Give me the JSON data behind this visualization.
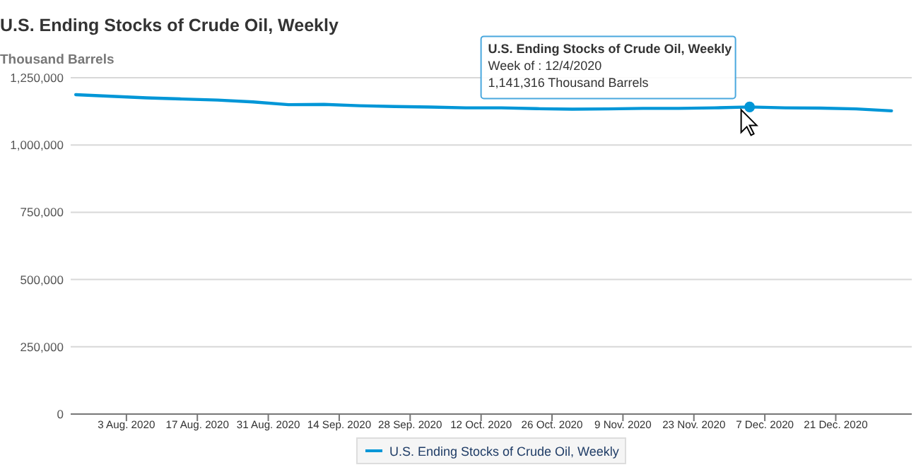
{
  "chart_data": {
    "type": "line",
    "title": "U.S. Ending Stocks of Crude Oil, Weekly",
    "ylabel": "Thousand Barrels",
    "x": [
      "2020-07-24",
      "2020-07-31",
      "2020-08-07",
      "2020-08-14",
      "2020-08-21",
      "2020-08-28",
      "2020-09-04",
      "2020-09-11",
      "2020-09-18",
      "2020-09-25",
      "2020-10-02",
      "2020-10-09",
      "2020-10-16",
      "2020-10-23",
      "2020-10-30",
      "2020-11-06",
      "2020-11-13",
      "2020-11-20",
      "2020-11-27",
      "2020-12-04",
      "2020-12-11",
      "2020-12-18",
      "2020-12-25",
      "2021-01-01"
    ],
    "series": [
      {
        "name": "U.S. Ending Stocks of Crude Oil, Weekly",
        "color": "#0096d7",
        "values": [
          1187000,
          1181000,
          1175000,
          1171000,
          1167000,
          1160000,
          1150000,
          1151000,
          1146000,
          1143000,
          1141000,
          1138000,
          1138000,
          1135000,
          1133000,
          1134000,
          1136000,
          1136000,
          1138000,
          1141316,
          1138000,
          1137000,
          1134000,
          1127000
        ]
      }
    ],
    "xlim": [
      "2020-07-23",
      "2021-01-05"
    ],
    "xticks": [
      {
        "value": "2020-08-03",
        "label": "3 Aug. 2020"
      },
      {
        "value": "2020-08-17",
        "label": "17 Aug. 2020"
      },
      {
        "value": "2020-08-31",
        "label": "31 Aug. 2020"
      },
      {
        "value": "2020-09-14",
        "label": "14 Sep. 2020"
      },
      {
        "value": "2020-09-28",
        "label": "28 Sep. 2020"
      },
      {
        "value": "2020-10-12",
        "label": "12 Oct. 2020"
      },
      {
        "value": "2020-10-26",
        "label": "26 Oct. 2020"
      },
      {
        "value": "2020-11-09",
        "label": "9 Nov. 2020"
      },
      {
        "value": "2020-11-23",
        "label": "23 Nov. 2020"
      },
      {
        "value": "2020-12-07",
        "label": "7 Dec. 2020"
      },
      {
        "value": "2020-12-21",
        "label": "21 Dec. 2020"
      }
    ],
    "ylim": [
      0,
      1250000
    ],
    "yticks": [
      {
        "value": 0,
        "label": "0"
      },
      {
        "value": 250000,
        "label": "250,000"
      },
      {
        "value": 500000,
        "label": "500,000"
      },
      {
        "value": 750000,
        "label": "750,000"
      },
      {
        "value": 1000000,
        "label": "1,000,000"
      },
      {
        "value": 1250000,
        "label": "1,250,000"
      }
    ],
    "grid": "y",
    "legend": "bottom",
    "marker": "none",
    "line_style": "solid",
    "annotations": [
      {
        "text": "U.S. Ending Stocks of Crude Oil, Weekly\nWeek of : 12/4/2020\n1,141,316 Thousand Barrels",
        "x": "2020-12-04",
        "y": 1141316
      }
    ]
  }
}
